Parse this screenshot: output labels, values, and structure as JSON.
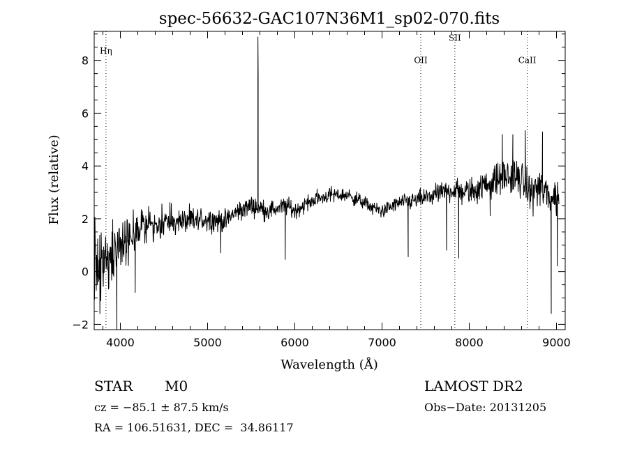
{
  "chart_data": {
    "type": "line",
    "title": "spec-56632-GAC107N36M1_sp02-070.fits",
    "xlabel": "Wavelength (Å)",
    "ylabel": "Flux (relative)",
    "xlim": [
      3700,
      9100
    ],
    "ylim": [
      -2.2,
      9.1
    ],
    "x_ticks": [
      4000,
      5000,
      6000,
      7000,
      8000,
      9000
    ],
    "x_tick_labels": [
      "4000",
      "5000",
      "6000",
      "7000",
      "8000",
      "9000"
    ],
    "y_ticks": [
      -2,
      0,
      2,
      4,
      6,
      8
    ],
    "y_tick_labels": [
      "−2",
      "0",
      "2",
      "4",
      "6",
      "8"
    ],
    "x_minor_step": 200,
    "y_minor_step": 0.5,
    "line_markers": [
      {
        "label": "Hη",
        "wavelength": 3835,
        "label_flux": 8.25
      },
      {
        "label": "OII",
        "wavelength": 7444,
        "label_flux": 7.9
      },
      {
        "label": "SII",
        "wavelength": 7835,
        "label_flux": 8.75
      },
      {
        "label": "CaII",
        "wavelength": 8665,
        "label_flux": 7.9
      }
    ],
    "spectrum_anchors": {
      "wavelength": [
        3700,
        3800,
        3900,
        4000,
        4100,
        4200,
        4300,
        4400,
        4600,
        4800,
        5000,
        5200,
        5300,
        5500,
        5700,
        5900,
        6000,
        6200,
        6400,
        6600,
        6800,
        6900,
        7000,
        7200,
        7400,
        7600,
        7800,
        8000,
        8200,
        8400,
        8600,
        8700,
        8800,
        8900,
        9000,
        9030
      ],
      "flux": [
        0.1,
        0.3,
        0.7,
        1.0,
        1.3,
        1.6,
        1.8,
        1.8,
        1.9,
        1.9,
        2.0,
        1.9,
        2.2,
        2.5,
        2.3,
        2.5,
        2.3,
        2.7,
        2.9,
        2.9,
        2.6,
        2.4,
        2.3,
        2.6,
        2.7,
        2.9,
        3.1,
        3.0,
        3.3,
        3.6,
        3.5,
        3.0,
        3.2,
        2.9,
        2.8,
        2.9
      ]
    },
    "spectrum_noise": {
      "wavelength": [
        3700,
        4000,
        4300,
        5000,
        5200,
        6000,
        7000,
        7600,
        8200,
        8600,
        9030
      ],
      "amplitude": [
        1.3,
        0.9,
        0.55,
        0.38,
        0.35,
        0.28,
        0.22,
        0.32,
        0.5,
        0.6,
        0.7
      ]
    },
    "spectrum_features": [
      {
        "wavelength": 5577,
        "flux": 8.9
      },
      {
        "wavelength": 5580,
        "flux": 7.4
      },
      {
        "wavelength": 3765,
        "flux": -1.6
      },
      {
        "wavelength": 3960,
        "flux": -2.2
      },
      {
        "wavelength": 4170,
        "flux": -0.8
      },
      {
        "wavelength": 5150,
        "flux": 0.7
      },
      {
        "wavelength": 5890,
        "flux": 0.45
      },
      {
        "wavelength": 7300,
        "flux": 0.55
      },
      {
        "wavelength": 7740,
        "flux": 0.8
      },
      {
        "wavelength": 7880,
        "flux": 0.5
      },
      {
        "wavelength": 8240,
        "flux": 2.1
      },
      {
        "wavelength": 8380,
        "flux": 5.2
      },
      {
        "wavelength": 8500,
        "flux": 5.2
      },
      {
        "wavelength": 8642,
        "flux": 5.35
      },
      {
        "wavelength": 8840,
        "flux": 5.3
      },
      {
        "wavelength": 8940,
        "flux": -1.6
      },
      {
        "wavelength": 9010,
        "flux": 0.2
      }
    ]
  },
  "footer": {
    "object_class": "STAR",
    "subclass": "M0",
    "survey": "LAMOST DR2",
    "cz": "cz = −85.1 ± 87.5 km/s",
    "obs_date": "Obs−Date: 20131205",
    "coords": "RA = 106.51631, DEC =  34.86117"
  },
  "colors": {
    "line": "#000000",
    "background": "#ffffff"
  }
}
